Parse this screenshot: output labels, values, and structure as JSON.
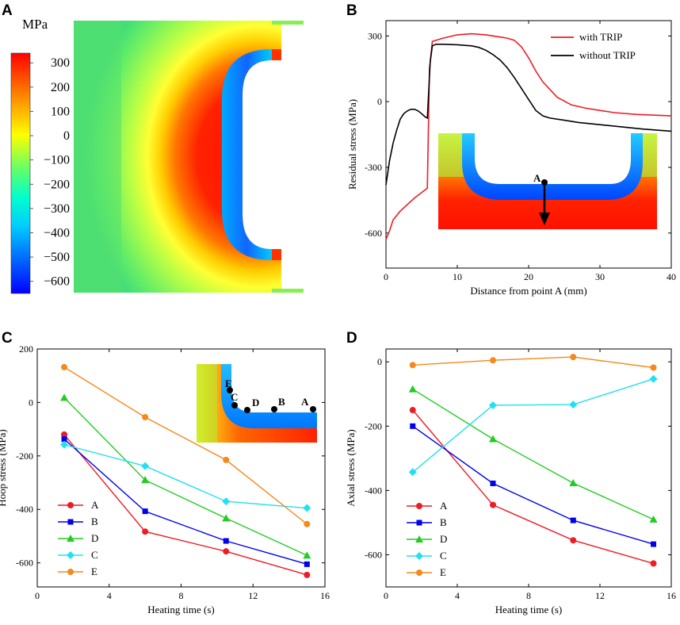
{
  "panels": {
    "a_label": "A",
    "b_label": "B",
    "c_label": "C",
    "d_label": "D"
  },
  "chart_data": [
    {
      "panel": "A",
      "type": "heatmap",
      "colorbar_title": "MPa",
      "colorbar_ticks": [
        300,
        200,
        100,
        0,
        -100,
        -200,
        -300,
        -400,
        -500,
        -600
      ],
      "colorbar_range": [
        -650,
        340
      ],
      "colormap": [
        "#0000ff",
        "#00aaff",
        "#00ffff",
        "#33ff99",
        "#ccff33",
        "#ffff00",
        "#ff8800",
        "#ff0000"
      ]
    },
    {
      "panel": "B",
      "type": "line",
      "xlabel": "Distance from point A (mm)",
      "ylabel": "Residual stress (MPa)",
      "xlim": [
        0,
        40
      ],
      "ylim": [
        -760,
        370
      ],
      "xticks": [
        0,
        10,
        20,
        30,
        40
      ],
      "yticks": [
        300,
        0,
        -300,
        -600
      ],
      "inset_marker": "A",
      "series": [
        {
          "name": "with TRIP",
          "color": "#ee1c25",
          "x": [
            0,
            0.5,
            1,
            2,
            3,
            4,
            5,
            5.8,
            6.1,
            6.5,
            8,
            10,
            12,
            14,
            15,
            16,
            17,
            18,
            19,
            20,
            21,
            22,
            24,
            26,
            28,
            30,
            32,
            35,
            38,
            40
          ],
          "y": [
            -630,
            -590,
            -540,
            -500,
            -470,
            -440,
            -415,
            -395,
            150,
            275,
            290,
            305,
            310,
            305,
            300,
            295,
            290,
            280,
            250,
            200,
            140,
            90,
            20,
            -15,
            -30,
            -40,
            -50,
            -58,
            -62,
            -65
          ]
        },
        {
          "name": "without TRIP",
          "color": "#000000",
          "x": [
            0,
            0.5,
            1,
            1.5,
            2,
            2.5,
            3,
            3.5,
            4,
            4.5,
            5,
            5.5,
            5.8,
            6.2,
            6.5,
            7,
            8,
            10,
            12,
            13,
            14,
            15,
            16,
            17,
            18,
            19,
            20,
            21,
            22,
            23,
            25,
            27,
            30,
            33,
            36,
            40
          ],
          "y": [
            -380,
            -270,
            -190,
            -130,
            -80,
            -55,
            -42,
            -35,
            -35,
            -42,
            -55,
            -70,
            -75,
            180,
            255,
            262,
            262,
            260,
            255,
            248,
            235,
            215,
            190,
            155,
            110,
            60,
            10,
            -40,
            -65,
            -75,
            -85,
            -95,
            -105,
            -115,
            -125,
            -135
          ]
        }
      ]
    },
    {
      "panel": "C",
      "type": "line",
      "xlabel": "Heating time (s)",
      "ylabel": "Hoop  stress (MPa)",
      "xlim": [
        0,
        16
      ],
      "ylim": [
        -690,
        200
      ],
      "xticks": [
        0,
        4,
        8,
        12,
        16
      ],
      "yticks": [
        200,
        0,
        -200,
        -400,
        -600
      ],
      "inset_points": [
        "E",
        "C",
        "D",
        "B",
        "A"
      ],
      "x": [
        1.5,
        6,
        10.5,
        15
      ],
      "series": [
        {
          "name": "A",
          "color": "#ee1c25",
          "marker": "circle",
          "values": [
            -120,
            -483,
            -557,
            -645
          ]
        },
        {
          "name": "B",
          "color": "#0000ee",
          "marker": "square",
          "values": [
            -137,
            -407,
            -518,
            -605
          ]
        },
        {
          "name": "D",
          "color": "#22cc22",
          "marker": "triangle",
          "values": [
            18,
            -290,
            -433,
            -572
          ]
        },
        {
          "name": "C",
          "color": "#22e0f0",
          "marker": "diamond",
          "values": [
            -158,
            -238,
            -370,
            -395
          ]
        },
        {
          "name": "E",
          "color": "#f4891e",
          "marker": "circle",
          "values": [
            132,
            -55,
            -215,
            -455
          ]
        }
      ]
    },
    {
      "panel": "D",
      "type": "line",
      "xlabel": "Heating time (s)",
      "ylabel": "Axial  stress (MPa)",
      "xlim": [
        0,
        16
      ],
      "ylim": [
        -700,
        40
      ],
      "xticks": [
        0,
        4,
        8,
        12,
        16
      ],
      "yticks": [
        0,
        -200,
        -400,
        -600
      ],
      "x": [
        1.5,
        6,
        10.5,
        15
      ],
      "series": [
        {
          "name": "A",
          "color": "#ee1c25",
          "marker": "circle",
          "values": [
            -150,
            -445,
            -555,
            -627
          ]
        },
        {
          "name": "B",
          "color": "#0000ee",
          "marker": "square",
          "values": [
            -200,
            -378,
            -493,
            -567
          ]
        },
        {
          "name": "D",
          "color": "#22cc22",
          "marker": "triangle",
          "values": [
            -85,
            -240,
            -377,
            -490
          ]
        },
        {
          "name": "C",
          "color": "#22e0f0",
          "marker": "diamond",
          "values": [
            -343,
            -135,
            -133,
            -53
          ]
        },
        {
          "name": "E",
          "color": "#f4891e",
          "marker": "circle",
          "values": [
            -10,
            5,
            15,
            -18
          ]
        }
      ]
    }
  ]
}
